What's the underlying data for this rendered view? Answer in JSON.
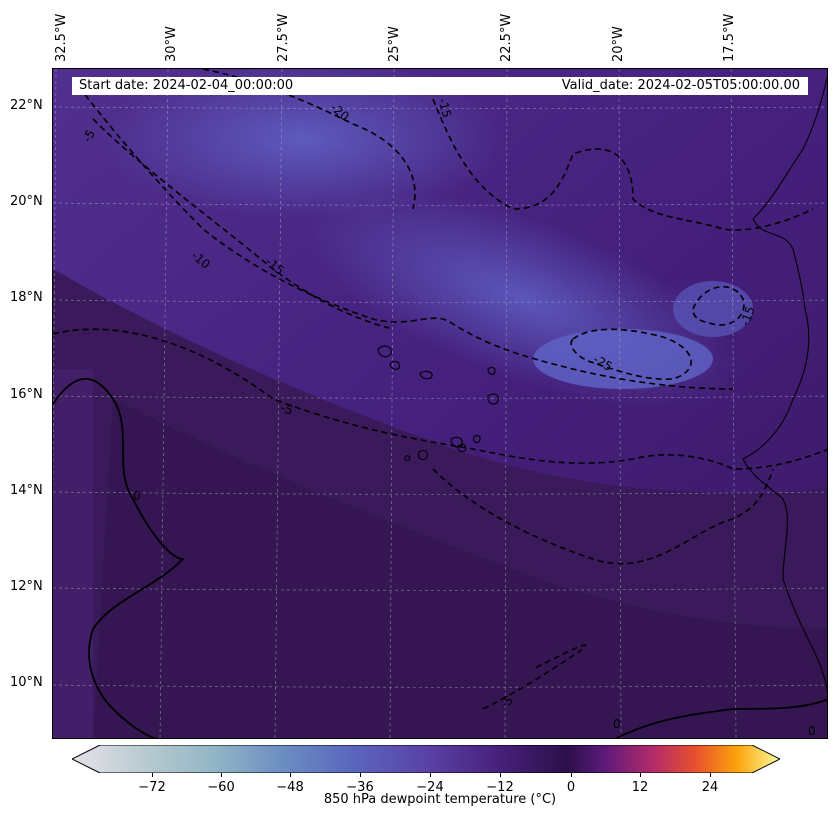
{
  "header": {
    "start_date": "Start date: 2024-02-04_00:00:00",
    "valid_date": "Valid_date: 2024-02-05T05:00:00.00"
  },
  "longitude_labels": [
    "32.5°W",
    "30°W",
    "27.5°W",
    "25°W",
    "22.5°W",
    "20°W",
    "17.5°W"
  ],
  "latitude_labels": [
    "22°N",
    "20°N",
    "18°N",
    "16°N",
    "14°N",
    "12°N",
    "10°N"
  ],
  "contour_labels": [
    "-20",
    "-15",
    "-10",
    "-15",
    "-5",
    "-25",
    "-15",
    "-5",
    "-5",
    "0",
    "0",
    "0"
  ],
  "colorbar": {
    "title": "850 hPa dewpoint temperature ($^\\circ$C)",
    "title_display": "850 hPa dewpoint temperature (°C)",
    "ticks": [
      "−72",
      "−60",
      "−48",
      "−36",
      "−24",
      "−12",
      "0",
      "12",
      "24"
    ],
    "range": [
      -84,
      36
    ],
    "colors": [
      "#e6e1ea",
      "#b9cbd0",
      "#7fa6c0",
      "#5a6fbe",
      "#5b44a8",
      "#4a2280",
      "#2c0f4a",
      "#5a1a7a",
      "#b22b6a",
      "#e8502e",
      "#fba40b",
      "#fbfb9d"
    ]
  },
  "map": {
    "variable": "850 hPa dewpoint temperature",
    "units": "°C",
    "colors": {
      "dry_band": "#5a55b8",
      "background": "#4a2386",
      "moist": "#3a1a5e",
      "contour": "#000000",
      "grid": "#bbbbbb",
      "coast": "#000000"
    }
  }
}
